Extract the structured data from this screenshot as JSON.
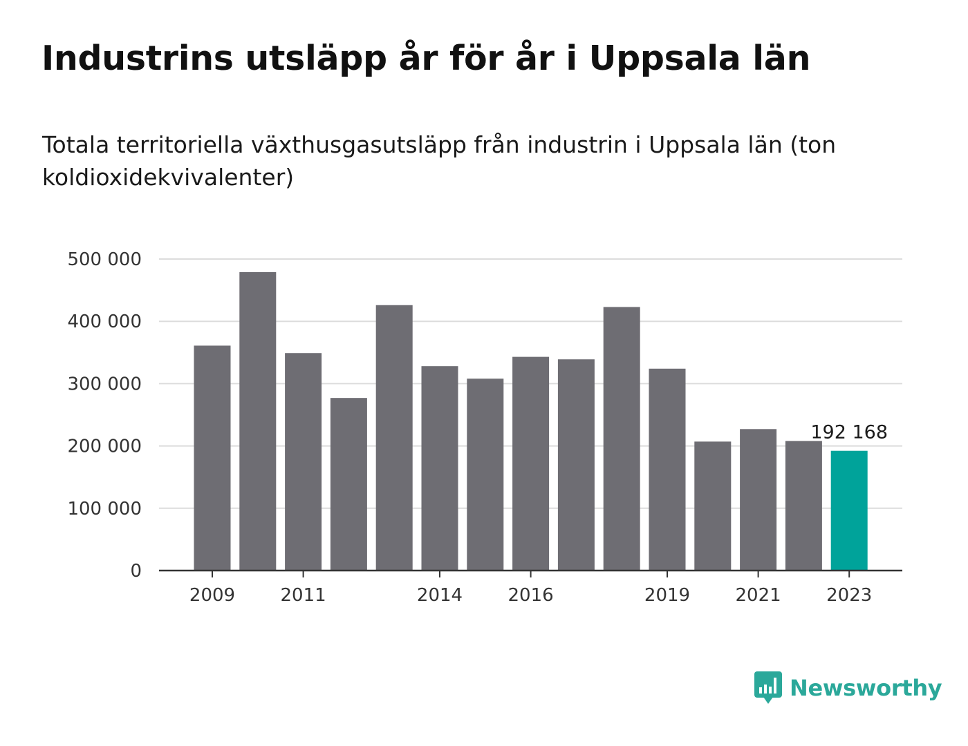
{
  "header": {
    "title": "Industrins utsläpp år för år i Uppsala län",
    "subtitle": "Totala territoriella växthusgasutsläpp från industrin i Uppsala län (ton koldioxidekvivalenter)"
  },
  "chart_data": {
    "type": "bar",
    "categories": [
      "2009",
      "2010",
      "2011",
      "2012",
      "2013",
      "2014",
      "2015",
      "2016",
      "2017",
      "2018",
      "2019",
      "2020",
      "2021",
      "2022",
      "2023"
    ],
    "values": [
      361000,
      479000,
      349000,
      277000,
      426000,
      328000,
      308000,
      343000,
      339000,
      423000,
      324000,
      207000,
      227000,
      208000,
      192168
    ],
    "x_tick_labels": [
      "2009",
      "2011",
      "2014",
      "2016",
      "2019",
      "2021",
      "2023"
    ],
    "y_ticks": [
      0,
      100000,
      200000,
      300000,
      400000,
      500000
    ],
    "y_tick_labels": [
      "0",
      "100 000",
      "200 000",
      "300 000",
      "400 000",
      "500 000"
    ],
    "ylim": [
      0,
      500000
    ],
    "highlight_index": 14,
    "highlight_label": "192 168",
    "bar_color": "#6e6d73",
    "highlight_color": "#00a39a",
    "grid": true
  },
  "brand": {
    "name": "Newsworthy",
    "icon": "newsworthy-logo-icon",
    "color": "#2ba89a"
  }
}
